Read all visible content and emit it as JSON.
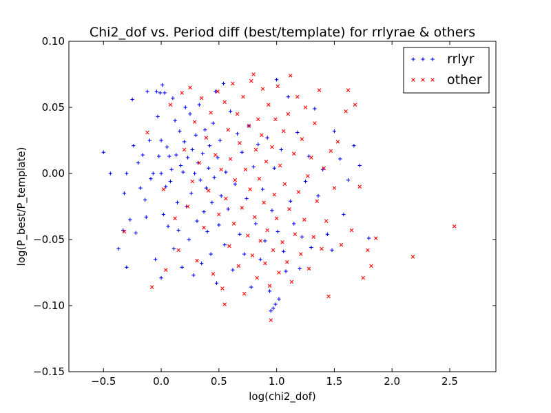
{
  "chart_data": {
    "type": "scatter",
    "title": "Chi2_dof vs. Period diff (best/template) for rrlyrae & others",
    "xlabel": "log(chi2_dof)",
    "ylabel": "log(P_best/P_template)",
    "xlim": [
      -0.8,
      2.9
    ],
    "ylim": [
      -0.15,
      0.1
    ],
    "xticks": [
      -0.5,
      0.0,
      0.5,
      1.0,
      1.5,
      2.0,
      2.5
    ],
    "yticks": [
      -0.15,
      -0.1,
      -0.05,
      0.0,
      0.05,
      0.1
    ],
    "xtick_labels": [
      "−0.5",
      "0.0",
      "0.5",
      "1.0",
      "1.5",
      "2.0",
      "2.5"
    ],
    "ytick_labels": [
      "−0.15",
      "−0.10",
      "−0.05",
      "0.00",
      "0.05",
      "0.10"
    ],
    "grid": false,
    "legend_position": "top-right",
    "series": [
      {
        "name": "rrlyr",
        "marker": "plus",
        "color": "#0000ff",
        "points": [
          [
            -0.5,
            0.016
          ],
          [
            -0.44,
            0.0
          ],
          [
            -0.37,
            -0.057
          ],
          [
            -0.33,
            -0.043
          ],
          [
            -0.32,
            -0.015
          ],
          [
            -0.3,
            0.0
          ],
          [
            -0.3,
            -0.071
          ],
          [
            -0.27,
            -0.035
          ],
          [
            -0.25,
            0.056
          ],
          [
            -0.24,
            0.021
          ],
          [
            -0.22,
            -0.045
          ],
          [
            -0.2,
            0.008
          ],
          [
            -0.18,
            -0.011
          ],
          [
            -0.16,
            0.014
          ],
          [
            -0.14,
            -0.02
          ],
          [
            -0.13,
            -0.033
          ],
          [
            -0.12,
            0.062
          ],
          [
            -0.1,
            0.025
          ],
          [
            -0.09,
            -0.004
          ],
          [
            -0.07,
            0.0
          ],
          [
            -0.05,
            -0.065
          ],
          [
            -0.04,
            0.062
          ],
          [
            -0.03,
            0.043
          ],
          [
            -0.02,
            0.013
          ],
          [
            -0.01,
            0.061
          ],
          [
            0.0,
            -0.079
          ],
          [
            0.0,
            0.025
          ],
          [
            0.0,
            0.0
          ],
          [
            0.01,
            0.067
          ],
          [
            0.02,
            -0.031
          ],
          [
            0.03,
            0.061
          ],
          [
            0.04,
            -0.01
          ],
          [
            0.05,
            0.02
          ],
          [
            0.06,
            -0.04
          ],
          [
            0.07,
            0.013
          ],
          [
            0.08,
            -0.006
          ],
          [
            0.09,
            0.003
          ],
          [
            0.1,
            0.057
          ],
          [
            0.11,
            -0.057
          ],
          [
            0.12,
            0.04
          ],
          [
            0.13,
            0.014
          ],
          [
            0.14,
            -0.022
          ],
          [
            0.15,
            -0.043
          ],
          [
            0.16,
            0.032
          ],
          [
            0.17,
            0.006
          ],
          [
            0.18,
            -0.071
          ],
          [
            0.19,
            0.001
          ],
          [
            0.2,
            0.024
          ],
          [
            0.21,
            0.05
          ],
          [
            0.22,
            -0.025
          ],
          [
            0.23,
            0.012
          ],
          [
            0.24,
            -0.05
          ],
          [
            0.25,
            0.045
          ],
          [
            0.26,
            -0.015
          ],
          [
            0.27,
            0.018
          ],
          [
            0.28,
            -0.077
          ],
          [
            0.29,
            0.0
          ],
          [
            0.3,
            0.029
          ],
          [
            0.31,
            -0.036
          ],
          [
            0.32,
            0.008
          ],
          [
            0.33,
            0.052
          ],
          [
            0.34,
            -0.005
          ],
          [
            0.35,
            -0.068
          ],
          [
            0.36,
            0.015
          ],
          [
            0.37,
            -0.029
          ],
          [
            0.38,
            0.033
          ],
          [
            0.39,
            -0.011
          ],
          [
            0.4,
            -0.044
          ],
          [
            0.41,
            0.004
          ],
          [
            0.42,
            0.021
          ],
          [
            0.43,
            -0.061
          ],
          [
            0.44,
            -0.022
          ],
          [
            0.45,
            0.038
          ],
          [
            0.46,
            -0.003
          ],
          [
            0.47,
            0.062
          ],
          [
            0.48,
            -0.083
          ],
          [
            0.49,
            0.012
          ],
          [
            0.5,
            -0.039
          ],
          [
            0.51,
            0.025
          ],
          [
            0.52,
            -0.017
          ],
          [
            0.54,
            0.068
          ],
          [
            0.55,
            -0.054
          ],
          [
            0.56,
            0.001
          ],
          [
            0.58,
            -0.027
          ],
          [
            0.6,
            0.047
          ],
          [
            0.62,
            -0.073
          ],
          [
            0.64,
            -0.008
          ],
          [
            0.66,
            0.03
          ],
          [
            0.68,
            -0.046
          ],
          [
            0.7,
            0.016
          ],
          [
            0.72,
            -0.061
          ],
          [
            0.74,
            -0.019
          ],
          [
            0.76,
            0.036
          ],
          [
            0.78,
            -0.086
          ],
          [
            0.8,
            0.005
          ],
          [
            0.82,
            -0.038
          ],
          [
            0.84,
            0.022
          ],
          [
            0.86,
            -0.065
          ],
          [
            0.88,
            -0.012
          ],
          [
            0.9,
            -0.051
          ],
          [
            0.92,
            0.027
          ],
          [
            0.94,
            -0.089
          ],
          [
            0.95,
            -0.104
          ],
          [
            0.96,
            -0.028
          ],
          [
            0.97,
            -0.102
          ],
          [
            0.98,
            0.004
          ],
          [
            0.99,
            -0.099
          ],
          [
            1.0,
            0.071
          ],
          [
            1.01,
            -0.044
          ],
          [
            1.02,
            -0.095
          ],
          [
            1.04,
            0.018
          ],
          [
            1.06,
            -0.059
          ],
          [
            1.08,
            -0.074
          ],
          [
            1.1,
            0.058
          ],
          [
            1.12,
            -0.021
          ],
          [
            1.15,
            -0.038
          ],
          [
            1.18,
            0.031
          ],
          [
            1.2,
            -0.072
          ],
          [
            1.22,
            -0.048
          ],
          [
            1.25,
            -0.006
          ],
          [
            1.28,
            0.013
          ],
          [
            1.3,
            -0.056
          ],
          [
            1.33,
            0.049
          ],
          [
            1.36,
            -0.017
          ],
          [
            1.4,
            0.003
          ],
          [
            1.44,
            -0.046
          ],
          [
            1.48,
            -0.058
          ],
          [
            1.5,
            0.032
          ],
          [
            1.55,
            0.011
          ],
          [
            1.58,
            -0.031
          ],
          [
            1.62,
            -0.005
          ],
          [
            1.67,
            0.021
          ],
          [
            1.72,
            0.006
          ],
          [
            1.8,
            -0.049
          ]
        ]
      },
      {
        "name": "other",
        "marker": "x",
        "color": "#ff0000",
        "points": [
          [
            -0.32,
            -0.044
          ],
          [
            -0.12,
            0.031
          ],
          [
            -0.08,
            -0.086
          ],
          [
            0.02,
            -0.012
          ],
          [
            0.04,
            -0.073
          ],
          [
            0.08,
            0.052
          ],
          [
            0.12,
            -0.034
          ],
          [
            0.15,
            -0.058
          ],
          [
            0.18,
            0.061
          ],
          [
            0.2,
            0.018
          ],
          [
            0.23,
            -0.025
          ],
          [
            0.25,
            0.065
          ],
          [
            0.27,
            -0.006
          ],
          [
            0.29,
            0.039
          ],
          [
            0.31,
            -0.066
          ],
          [
            0.33,
            0.008
          ],
          [
            0.35,
            0.057
          ],
          [
            0.37,
            -0.041
          ],
          [
            0.39,
            0.027
          ],
          [
            0.41,
            -0.013
          ],
          [
            0.43,
            0.046
          ],
          [
            0.45,
            -0.076
          ],
          [
            0.47,
            0.014
          ],
          [
            0.49,
            0.062
          ],
          [
            0.5,
            -0.031
          ],
          [
            0.52,
            0.003
          ],
          [
            0.53,
            -0.087
          ],
          [
            0.55,
            0.054
          ],
          [
            0.55,
            -0.099
          ],
          [
            0.56,
            -0.019
          ],
          [
            0.58,
            0.033
          ],
          [
            0.59,
            -0.055
          ],
          [
            0.6,
            0.011
          ],
          [
            0.62,
            0.068
          ],
          [
            0.63,
            -0.038
          ],
          [
            0.64,
            -0.005
          ],
          [
            0.66,
            0.045
          ],
          [
            0.67,
            -0.07
          ],
          [
            0.68,
            0.023
          ],
          [
            0.7,
            -0.026
          ],
          [
            0.71,
            0.058
          ],
          [
            0.72,
            -0.091
          ],
          [
            0.73,
            0.003
          ],
          [
            0.75,
            -0.047
          ],
          [
            0.76,
            0.036
          ],
          [
            0.77,
            -0.012
          ],
          [
            0.78,
            0.07
          ],
          [
            0.79,
            -0.062
          ],
          [
            0.8,
            0.075
          ],
          [
            0.81,
            -0.033
          ],
          [
            0.82,
            0.018
          ],
          [
            0.83,
            -0.079
          ],
          [
            0.84,
            0.041
          ],
          [
            0.85,
            -0.004
          ],
          [
            0.86,
            -0.051
          ],
          [
            0.87,
            0.029
          ],
          [
            0.88,
            0.064
          ],
          [
            0.89,
            -0.022
          ],
          [
            0.9,
            -0.068
          ],
          [
            0.91,
            0.009
          ],
          [
            0.92,
            -0.043
          ],
          [
            0.93,
            0.052
          ],
          [
            0.94,
            -0.085
          ],
          [
            0.95,
            -0.111
          ],
          [
            0.96,
            0.02
          ],
          [
            0.97,
            -0.058
          ],
          [
            0.98,
            -0.016
          ],
          [
            0.99,
            0.041
          ],
          [
            1.0,
            -0.034
          ],
          [
            1.01,
            0.066
          ],
          [
            1.02,
            -0.075
          ],
          [
            1.03,
            0.006
          ],
          [
            1.05,
            -0.052
          ],
          [
            1.06,
            0.032
          ],
          [
            1.07,
            -0.008
          ],
          [
            1.09,
            -0.067
          ],
          [
            1.1,
            0.045
          ],
          [
            1.11,
            -0.027
          ],
          [
            1.12,
            0.074
          ],
          [
            1.13,
            -0.082
          ],
          [
            1.15,
            0.015
          ],
          [
            1.16,
            -0.046
          ],
          [
            1.18,
            0.058
          ],
          [
            1.19,
            -0.014
          ],
          [
            1.21,
            -0.061
          ],
          [
            1.22,
            0.026
          ],
          [
            1.24,
            -0.035
          ],
          [
            1.25,
            0.05
          ],
          [
            1.27,
            -0.002
          ],
          [
            1.28,
            -0.072
          ],
          [
            1.3,
            0.012
          ],
          [
            1.32,
            -0.048
          ],
          [
            1.33,
            0.038
          ],
          [
            1.35,
            -0.021
          ],
          [
            1.37,
            0.063
          ],
          [
            1.39,
            -0.057
          ],
          [
            1.41,
            0.004
          ],
          [
            1.43,
            -0.036
          ],
          [
            1.45,
            -0.093
          ],
          [
            1.47,
            0.017
          ],
          [
            1.5,
            -0.011
          ],
          [
            1.53,
            0.024
          ],
          [
            1.56,
            -0.054
          ],
          [
            1.6,
            0.047
          ],
          [
            1.62,
            0.063
          ],
          [
            1.65,
            -0.043
          ],
          [
            1.68,
            0.052
          ],
          [
            1.72,
            -0.01
          ],
          [
            1.75,
            -0.079
          ],
          [
            1.79,
            -0.058
          ],
          [
            1.82,
            -0.07
          ],
          [
            1.86,
            -0.049
          ],
          [
            2.18,
            -0.063
          ],
          [
            2.54,
            -0.04
          ]
        ]
      }
    ]
  }
}
